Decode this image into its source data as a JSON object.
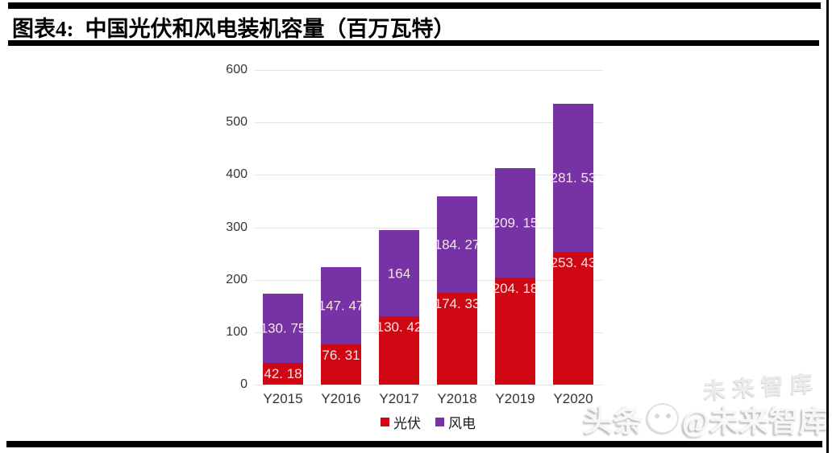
{
  "header": {
    "figure_label": "图表4:",
    "title": "中国光伏和风电装机容量（百万瓦特）"
  },
  "chart_data": {
    "type": "bar",
    "stacked": true,
    "title": "中国光伏和风电装机容量（百万瓦特）",
    "unit": "百万瓦特",
    "categories": [
      "Y2015",
      "Y2016",
      "Y2017",
      "Y2018",
      "Y2019",
      "Y2020"
    ],
    "series": [
      {
        "name": "光伏",
        "color": "#ce0712",
        "values": [
          42.18,
          76.31,
          130.42,
          174.33,
          204.18,
          253.43
        ],
        "labels": [
          "42. 18",
          "76. 31",
          "130. 42",
          "174. 33",
          "204. 18",
          "253. 43"
        ],
        "label_placement": "inside-top"
      },
      {
        "name": "风电",
        "color": "#7733a6",
        "values": [
          130.75,
          147.47,
          164,
          184.27,
          209.15,
          281.53
        ],
        "labels": [
          "130. 75",
          "147. 47",
          "164",
          "184. 27",
          "209. 15",
          "281. 53"
        ],
        "label_placement": "center"
      }
    ],
    "ylim": [
      0,
      600
    ],
    "yticks": [
      0,
      100,
      200,
      300,
      400,
      500,
      600
    ],
    "grid": true,
    "legend_position": "bottom",
    "data_label_color": "#f4e4e4"
  },
  "watermark": {
    "ghost_text": "未来智库",
    "main_text_left": "头条",
    "main_text_right": "@未来智库"
  }
}
